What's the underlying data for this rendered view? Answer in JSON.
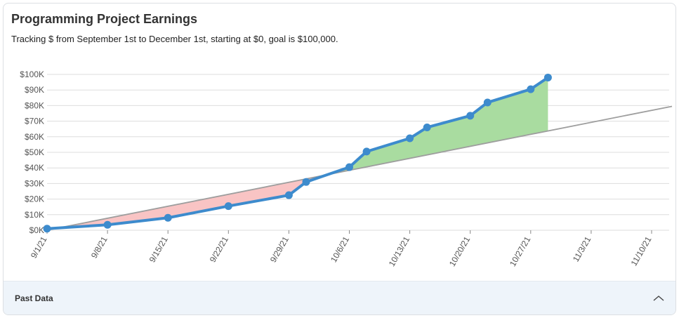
{
  "card": {
    "title": "Programming Project Earnings",
    "subtitle": "Tracking $ from September 1st to December 1st, starting at $0, goal is $100,000."
  },
  "footer": {
    "label": "Past Data",
    "icon": "chevron-up-icon"
  },
  "colors": {
    "series": "#3d8bcd",
    "goal_line": "#9e9e9e",
    "behind_fill": "#f9c4c4",
    "ahead_fill": "#a9dca0",
    "grid": "#dddddd"
  },
  "chart_data": {
    "type": "line",
    "x_axis": {
      "type": "date",
      "ticks": [
        "9/1/21",
        "9/8/21",
        "9/15/21",
        "9/22/21",
        "9/29/21",
        "10/6/21",
        "10/13/21",
        "10/20/21",
        "10/27/21",
        "11/3/21",
        "11/10/21"
      ]
    },
    "y_axis": {
      "ticks": [
        "$0K",
        "$10K",
        "$20K",
        "$30K",
        "$40K",
        "$50K",
        "$60K",
        "$70K",
        "$80K",
        "$90K",
        "$100K"
      ],
      "ylim": [
        0,
        100000
      ]
    },
    "grid": true,
    "series": [
      {
        "role": "earnings",
        "points": [
          {
            "x": "2021-09-01",
            "y": 1000
          },
          {
            "x": "2021-09-08",
            "y": 3500
          },
          {
            "x": "2021-09-15",
            "y": 8000
          },
          {
            "x": "2021-09-22",
            "y": 15500
          },
          {
            "x": "2021-09-29",
            "y": 22500
          },
          {
            "x": "2021-10-01",
            "y": 31000
          },
          {
            "x": "2021-10-06",
            "y": 40500
          },
          {
            "x": "2021-10-08",
            "y": 50500
          },
          {
            "x": "2021-10-13",
            "y": 59000
          },
          {
            "x": "2021-10-15",
            "y": 66000
          },
          {
            "x": "2021-10-20",
            "y": 73500
          },
          {
            "x": "2021-10-22",
            "y": 82000
          },
          {
            "x": "2021-10-27",
            "y": 90500
          },
          {
            "x": "2021-10-29",
            "y": 98000
          }
        ]
      },
      {
        "role": "goal",
        "points": [
          {
            "x": "2021-09-01",
            "y": 0
          },
          {
            "x": "2021-12-01",
            "y": 100000
          }
        ]
      }
    ]
  }
}
